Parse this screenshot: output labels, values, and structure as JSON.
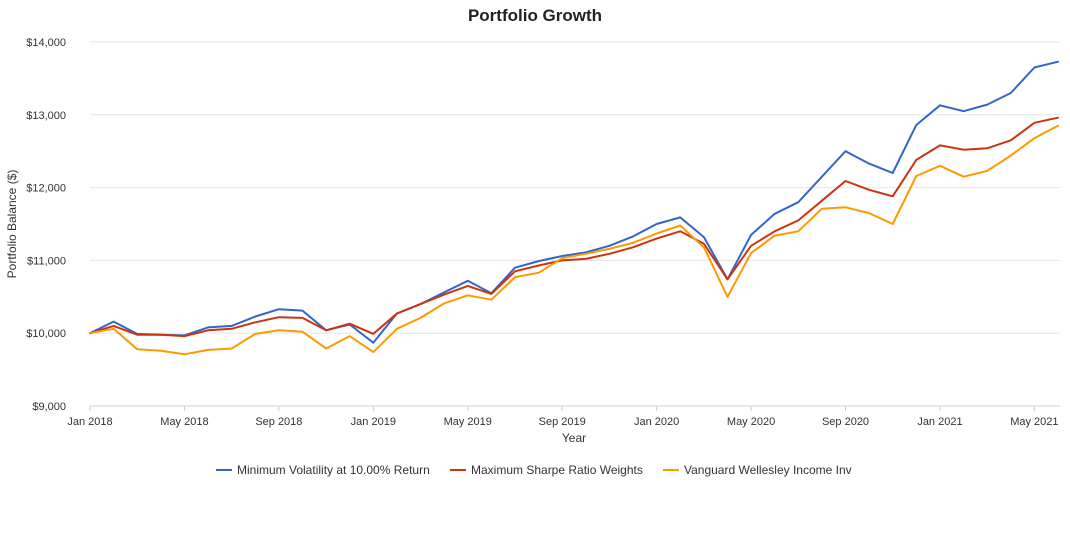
{
  "chart_data": {
    "type": "line",
    "title": "Portfolio Growth",
    "xlabel": "Year",
    "ylabel": "Portfolio Balance ($)",
    "ylim": [
      9000,
      14000
    ],
    "yticks": [
      9000,
      10000,
      11000,
      12000,
      13000,
      14000
    ],
    "ytick_labels": [
      "$9,000",
      "$10,000",
      "$11,000",
      "$12,000",
      "$13,000",
      "$14,000"
    ],
    "x": [
      "2018-01",
      "2018-02",
      "2018-03",
      "2018-04",
      "2018-05",
      "2018-06",
      "2018-07",
      "2018-08",
      "2018-09",
      "2018-10",
      "2018-11",
      "2018-12",
      "2019-01",
      "2019-02",
      "2019-03",
      "2019-04",
      "2019-05",
      "2019-06",
      "2019-07",
      "2019-08",
      "2019-09",
      "2019-10",
      "2019-11",
      "2019-12",
      "2020-01",
      "2020-02",
      "2020-03",
      "2020-04",
      "2020-05",
      "2020-06",
      "2020-07",
      "2020-08",
      "2020-09",
      "2020-10",
      "2020-11",
      "2020-12",
      "2021-01",
      "2021-02",
      "2021-03",
      "2021-04",
      "2021-05",
      "2021-06"
    ],
    "xticks": [
      "2018-01",
      "2018-05",
      "2018-09",
      "2019-01",
      "2019-05",
      "2019-09",
      "2020-01",
      "2020-05",
      "2020-09",
      "2021-01",
      "2021-05"
    ],
    "xtick_labels": [
      "Jan 2018",
      "May 2018",
      "Sep 2018",
      "Jan 2019",
      "May 2019",
      "Sep 2019",
      "Jan 2020",
      "May 2020",
      "Sep 2020",
      "Jan 2021",
      "May 2021"
    ],
    "grid": true,
    "legend_position": "bottom",
    "series": [
      {
        "name": "Minimum Volatility at 10.00% Return",
        "color": "#3366cc",
        "values": [
          10000,
          10160,
          9990,
          9980,
          9970,
          10080,
          10100,
          10230,
          10330,
          10310,
          10040,
          10120,
          9870,
          10270,
          10400,
          10560,
          10720,
          10550,
          10900,
          10990,
          11060,
          11110,
          11200,
          11330,
          11500,
          11590,
          11320,
          10740,
          11350,
          11640,
          11800,
          12150,
          12500,
          12330,
          12200,
          12860,
          13130,
          13050,
          13140,
          13300,
          13650,
          13730
        ]
      },
      {
        "name": "Maximum Sharpe Ratio Weights",
        "color": "#cc3311",
        "values": [
          10000,
          10100,
          9980,
          9980,
          9960,
          10040,
          10060,
          10150,
          10220,
          10210,
          10040,
          10130,
          9990,
          10270,
          10400,
          10530,
          10650,
          10540,
          10850,
          10930,
          11000,
          11020,
          11090,
          11180,
          11300,
          11400,
          11230,
          10740,
          11200,
          11400,
          11550,
          11820,
          12090,
          11970,
          11880,
          12380,
          12580,
          12520,
          12540,
          12650,
          12890,
          12960
        ]
      },
      {
        "name": "Vanguard Wellesley Income Inv",
        "color": "#ff9900",
        "values": [
          10000,
          10060,
          9780,
          9760,
          9710,
          9770,
          9790,
          9990,
          10040,
          10020,
          9790,
          9960,
          9740,
          10060,
          10210,
          10410,
          10520,
          10460,
          10770,
          10830,
          11030,
          11090,
          11160,
          11240,
          11370,
          11480,
          11180,
          10500,
          11100,
          11340,
          11400,
          11710,
          11730,
          11650,
          11500,
          12160,
          12300,
          12150,
          12230,
          12440,
          12680,
          12850
        ]
      }
    ]
  }
}
